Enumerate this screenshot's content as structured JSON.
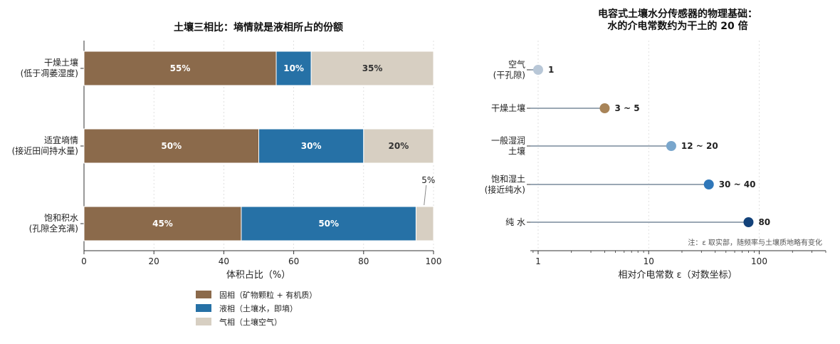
{
  "chart_data": [
    {
      "type": "bar",
      "orientation": "horizontal",
      "stacked": true,
      "title": "土壤三相比：墒情就是液相所占的份额",
      "xlabel": "体积占比（%）",
      "xlim": [
        0,
        100
      ],
      "xticks": [
        "0",
        "20",
        "40",
        "60",
        "80",
        "100"
      ],
      "grid": true,
      "legend_position": "bottom",
      "categories": [
        [
          "干燥土壤",
          "(低于凋萎湿度)"
        ],
        [
          "适宜墒情",
          "(接近田间持水量)"
        ],
        [
          "饱和积水",
          "(孔隙全充满)"
        ]
      ],
      "series": [
        {
          "name": "固相（矿物颗粒 + 有机质）",
          "color": "#8b6a4b",
          "values": [
            55,
            50,
            45
          ],
          "labels": [
            "55%",
            "50%",
            "45%"
          ],
          "label_color": "#ffffff"
        },
        {
          "name": "液相（土壤水，即墒）",
          "color": "#2671a6",
          "values": [
            10,
            30,
            50
          ],
          "labels": [
            "10%",
            "30%",
            "50%"
          ],
          "label_color": "#ffffff"
        },
        {
          "name": "气相（土壤空气）",
          "color": "#d7cfc2",
          "values": [
            35,
            20,
            5
          ],
          "labels": [
            "35%",
            "20%",
            "5%"
          ],
          "label_color": "#333333"
        }
      ]
    },
    {
      "type": "scatter",
      "style": "lollipop",
      "title": [
        "电容式土壤水分传感器的物理基础：",
        "水的介电常数约为干土的 20 倍"
      ],
      "xlabel": "相对介电常数 ε（对数坐标）",
      "xscale": "log",
      "xlim": [
        0.85,
        400
      ],
      "xticks": [
        "1",
        "10",
        "100"
      ],
      "grid": true,
      "categories": [
        [
          "空气",
          "(干孔隙)"
        ],
        [
          "干燥土壤"
        ],
        [
          "一般湿润",
          "土壤"
        ],
        [
          "饱和湿土",
          "(接近纯水)"
        ],
        [
          "纯 水"
        ]
      ],
      "values": [
        1,
        4,
        16,
        35,
        80
      ],
      "labels": [
        "1",
        "3 ~ 5",
        "12 ~ 20",
        "30 ~ 40",
        "80"
      ],
      "colors": [
        "#b8c7d7",
        "#a88458",
        "#79a6cc",
        "#2f77b9",
        "#13427a"
      ],
      "note": "注：ε 取实部，随频率与土壤质地略有变化"
    }
  ]
}
